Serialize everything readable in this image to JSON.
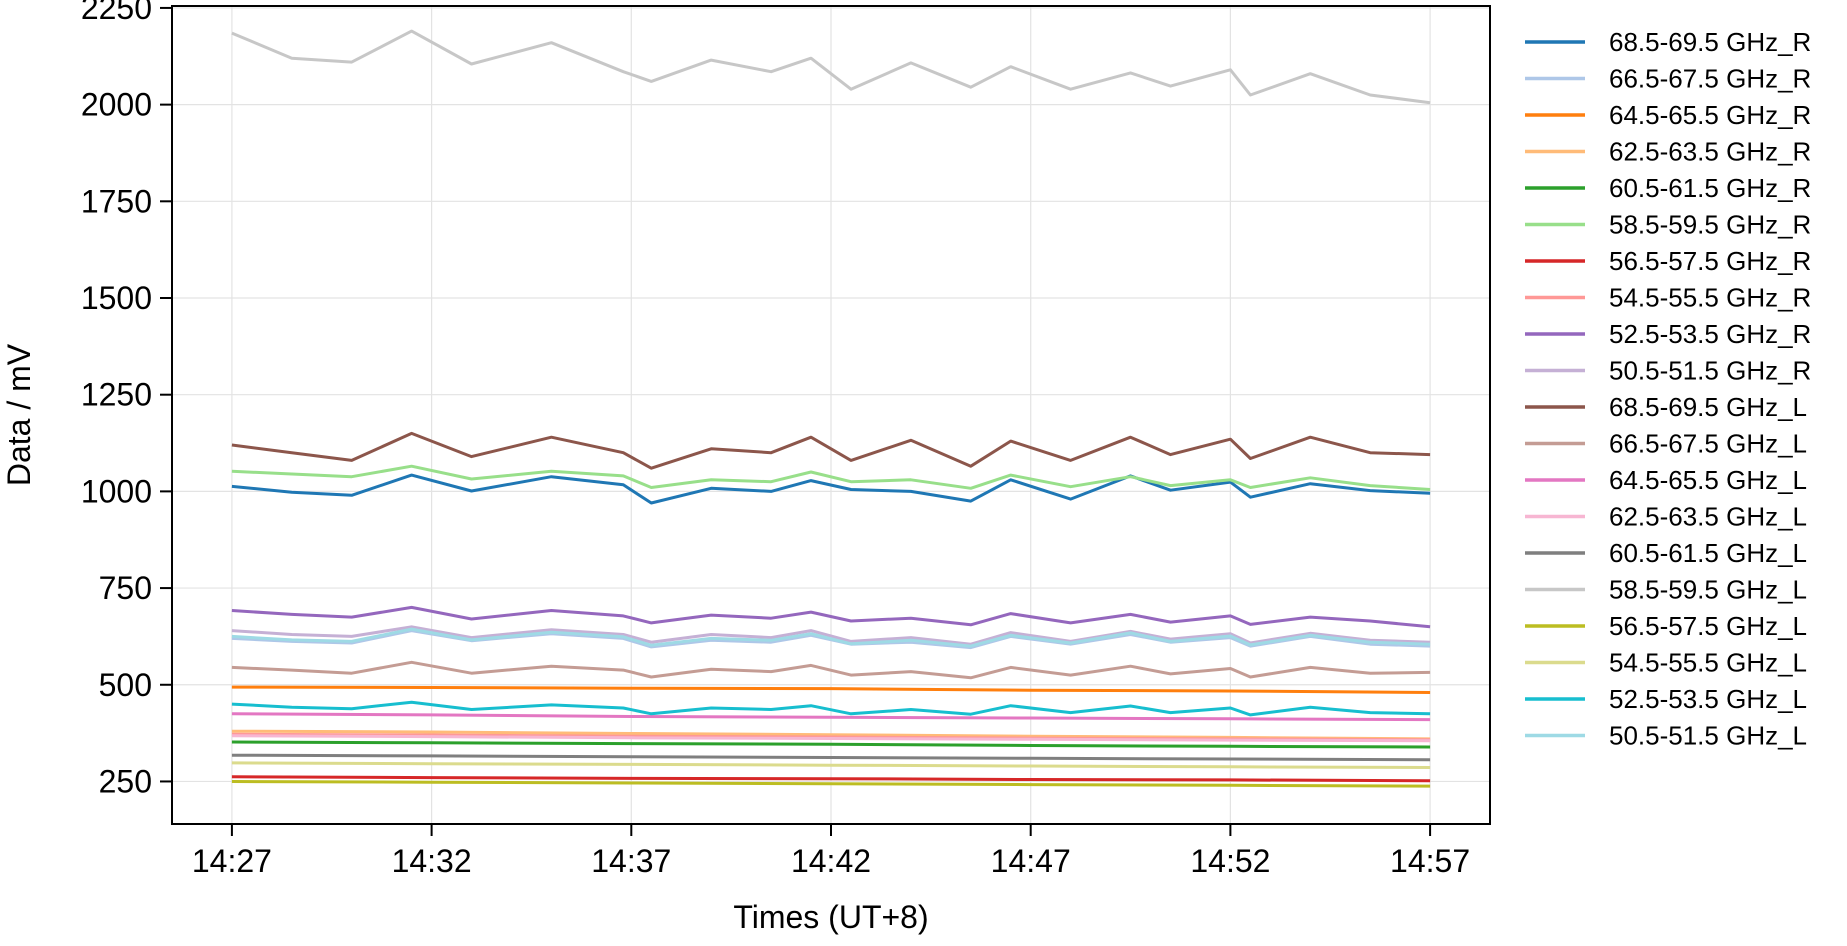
{
  "chart_data": {
    "type": "line",
    "title": "",
    "xlabel": "Times (UT+8)",
    "ylabel": "Data / mV",
    "ylim": [
      140,
      2255
    ],
    "xlim": [
      -1.5,
      31.5
    ],
    "x_tick_values": [
      0,
      5,
      10,
      15,
      20,
      25,
      30
    ],
    "x_tick_labels": [
      "14:27",
      "14:32",
      "14:37",
      "14:42",
      "14:47",
      "14:52",
      "14:57"
    ],
    "y_ticks": [
      250,
      500,
      750,
      1000,
      1250,
      1500,
      1750,
      2000,
      2250
    ],
    "grid": true,
    "legend_position": "outside-right",
    "x_units": "minutes after 14:27",
    "series": [
      {
        "name": "68.5-69.5 GHz_R",
        "color": "#1f77b4",
        "x": [
          0,
          1.5,
          3,
          4.5,
          6,
          8,
          9.8,
          10.5,
          12,
          13.5,
          14.5,
          15.5,
          17,
          18.5,
          19.5,
          21,
          22.5,
          23.5,
          25,
          25.5,
          27,
          28.5,
          30
        ],
        "y": [
          1013,
          998,
          990,
          1042,
          1001,
          1038,
          1017,
          970,
          1008,
          1000,
          1028,
          1005,
          1000,
          975,
          1030,
          980,
          1040,
          1003,
          1024,
          985,
          1020,
          1002,
          995
        ]
      },
      {
        "name": "66.5-67.5 GHz_R",
        "color": "#aec7e8",
        "x": [
          0,
          1.5,
          3,
          4.5,
          6,
          8,
          9.8,
          10.5,
          12,
          13.5,
          14.5,
          15.5,
          17,
          18.5,
          19.5,
          21,
          22.5,
          23.5,
          25,
          25.5,
          27,
          28.5,
          30
        ],
        "y": [
          620,
          612,
          608,
          640,
          614,
          632,
          620,
          598,
          615,
          610,
          628,
          605,
          610,
          596,
          625,
          605,
          630,
          610,
          622,
          600,
          625,
          605,
          600
        ]
      },
      {
        "name": "64.5-65.5 GHz_R",
        "color": "#ff7f0e",
        "x": [
          0,
          5,
          10,
          15,
          20,
          25,
          30
        ],
        "y": [
          494,
          493,
          491,
          490,
          486,
          484,
          480
        ]
      },
      {
        "name": "62.5-63.5 GHz_R",
        "color": "#ffbb78",
        "x": [
          0,
          5,
          10,
          15,
          20,
          25,
          30
        ],
        "y": [
          380,
          378,
          374,
          371,
          367,
          364,
          360
        ]
      },
      {
        "name": "60.5-61.5 GHz_R",
        "color": "#2ca02c",
        "x": [
          0,
          5,
          10,
          15,
          20,
          25,
          30
        ],
        "y": [
          352,
          350,
          348,
          346,
          343,
          341,
          339
        ]
      },
      {
        "name": "58.5-59.5 GHz_R",
        "color": "#98df8a",
        "x": [
          0,
          1.5,
          3,
          4.5,
          6,
          8,
          9.8,
          10.5,
          12,
          13.5,
          14.5,
          15.5,
          17,
          18.5,
          19.5,
          21,
          22.5,
          23.5,
          25,
          25.5,
          27,
          28.5,
          30
        ],
        "y": [
          1052,
          1045,
          1038,
          1065,
          1032,
          1052,
          1040,
          1010,
          1030,
          1025,
          1050,
          1025,
          1030,
          1008,
          1042,
          1012,
          1038,
          1015,
          1030,
          1010,
          1035,
          1015,
          1005
        ]
      },
      {
        "name": "56.5-57.5 GHz_R",
        "color": "#d62728",
        "x": [
          0,
          5,
          10,
          15,
          20,
          25,
          30
        ],
        "y": [
          262,
          260,
          258,
          257,
          255,
          254,
          252
        ]
      },
      {
        "name": "54.5-55.5 GHz_R",
        "color": "#ff9896",
        "x": [
          0,
          5,
          10,
          15,
          20,
          25,
          30
        ],
        "y": [
          372,
          370,
          367,
          365,
          362,
          360,
          358
        ]
      },
      {
        "name": "52.5-53.5 GHz_R",
        "color": "#9467bd",
        "x": [
          0,
          1.5,
          3,
          4.5,
          6,
          8,
          9.8,
          10.5,
          12,
          13.5,
          14.5,
          15.5,
          17,
          18.5,
          19.5,
          21,
          22.5,
          23.5,
          25,
          25.5,
          27,
          28.5,
          30
        ],
        "y": [
          692,
          682,
          675,
          700,
          670,
          692,
          678,
          660,
          680,
          672,
          688,
          665,
          672,
          655,
          684,
          660,
          682,
          662,
          678,
          656,
          675,
          665,
          650
        ]
      },
      {
        "name": "50.5-51.5 GHz_R",
        "color": "#c5b0d5",
        "x": [
          0,
          1.5,
          3,
          4.5,
          6,
          8,
          9.8,
          10.5,
          12,
          13.5,
          14.5,
          15.5,
          17,
          18.5,
          19.5,
          21,
          22.5,
          23.5,
          25,
          25.5,
          27,
          28.5,
          30
        ],
        "y": [
          640,
          630,
          625,
          650,
          622,
          642,
          630,
          610,
          630,
          622,
          640,
          612,
          622,
          605,
          635,
          612,
          638,
          618,
          632,
          608,
          633,
          615,
          610
        ]
      },
      {
        "name": "68.5-69.5 GHz_L",
        "color": "#8c564b",
        "x": [
          0,
          1.5,
          3,
          4.5,
          6,
          8,
          9.8,
          10.5,
          12,
          13.5,
          14.5,
          15.5,
          17,
          18.5,
          19.5,
          21,
          22.5,
          23.5,
          25,
          25.5,
          27,
          28.5,
          30
        ],
        "y": [
          1120,
          1100,
          1080,
          1150,
          1090,
          1140,
          1100,
          1060,
          1110,
          1100,
          1140,
          1080,
          1132,
          1065,
          1130,
          1080,
          1140,
          1095,
          1135,
          1085,
          1140,
          1100,
          1095
        ]
      },
      {
        "name": "66.5-67.5 GHz_L",
        "color": "#c49c94",
        "x": [
          0,
          1.5,
          3,
          4.5,
          6,
          8,
          9.8,
          10.5,
          12,
          13.5,
          14.5,
          15.5,
          17,
          18.5,
          19.5,
          21,
          22.5,
          23.5,
          25,
          25.5,
          27,
          28.5,
          30
        ],
        "y": [
          545,
          538,
          530,
          558,
          530,
          548,
          538,
          520,
          540,
          534,
          550,
          525,
          534,
          518,
          545,
          525,
          548,
          528,
          542,
          520,
          545,
          530,
          532
        ]
      },
      {
        "name": "64.5-65.5 GHz_L",
        "color": "#e377c2",
        "x": [
          0,
          5,
          10,
          15,
          20,
          25,
          30
        ],
        "y": [
          425,
          422,
          418,
          416,
          414,
          412,
          410
        ]
      },
      {
        "name": "62.5-63.5 GHz_L",
        "color": "#f7b6d2",
        "x": [
          0,
          5,
          10,
          15,
          20,
          25,
          30
        ],
        "y": [
          368,
          366,
          363,
          361,
          359,
          357,
          355
        ]
      },
      {
        "name": "60.5-61.5 GHz_L",
        "color": "#7f7f7f",
        "x": [
          0,
          5,
          10,
          15,
          20,
          25,
          30
        ],
        "y": [
          318,
          316,
          314,
          312,
          310,
          308,
          306
        ]
      },
      {
        "name": "58.5-59.5 GHz_L",
        "color": "#c7c7c7",
        "x": [
          0,
          1.5,
          3,
          4.5,
          6,
          8,
          9.8,
          10.5,
          12,
          13.5,
          14.5,
          15.5,
          17,
          18.5,
          19.5,
          21,
          22.5,
          23.5,
          25,
          25.5,
          27,
          28.5,
          30
        ],
        "y": [
          2185,
          2120,
          2110,
          2190,
          2105,
          2160,
          2085,
          2060,
          2115,
          2085,
          2120,
          2040,
          2108,
          2045,
          2098,
          2040,
          2082,
          2048,
          2090,
          2025,
          2080,
          2025,
          2005
        ]
      },
      {
        "name": "56.5-57.5 GHz_L",
        "color": "#bcbd22",
        "x": [
          0,
          5,
          10,
          15,
          20,
          25,
          30
        ],
        "y": [
          250,
          248,
          246,
          244,
          242,
          240,
          238
        ]
      },
      {
        "name": "54.5-55.5 GHz_L",
        "color": "#dbdb8d",
        "x": [
          0,
          5,
          10,
          15,
          20,
          25,
          30
        ],
        "y": [
          298,
          296,
          294,
          292,
          290,
          288,
          286
        ]
      },
      {
        "name": "52.5-53.5 GHz_L",
        "color": "#17becf",
        "x": [
          0,
          1.5,
          3,
          4.5,
          6,
          8,
          9.8,
          10.5,
          12,
          13.5,
          14.5,
          15.5,
          17,
          18.5,
          19.5,
          21,
          22.5,
          23.5,
          25,
          25.5,
          27,
          28.5,
          30
        ],
        "y": [
          450,
          442,
          438,
          455,
          436,
          448,
          440,
          425,
          440,
          436,
          446,
          425,
          436,
          424,
          446,
          428,
          445,
          428,
          440,
          422,
          442,
          428,
          425
        ]
      },
      {
        "name": "50.5-51.5 GHz_L",
        "color": "#9edae5",
        "x": [
          0,
          1.5,
          3,
          4.5,
          6,
          8,
          9.8,
          10.5,
          12,
          13.5,
          14.5,
          15.5,
          17,
          18.5,
          19.5,
          21,
          22.5,
          23.5,
          25,
          25.5,
          27,
          28.5,
          30
        ],
        "y": [
          625,
          616,
          612,
          644,
          616,
          636,
          624,
          602,
          620,
          615,
          632,
          606,
          615,
          600,
          628,
          608,
          634,
          612,
          626,
          603,
          628,
          610,
          605
        ]
      }
    ]
  }
}
